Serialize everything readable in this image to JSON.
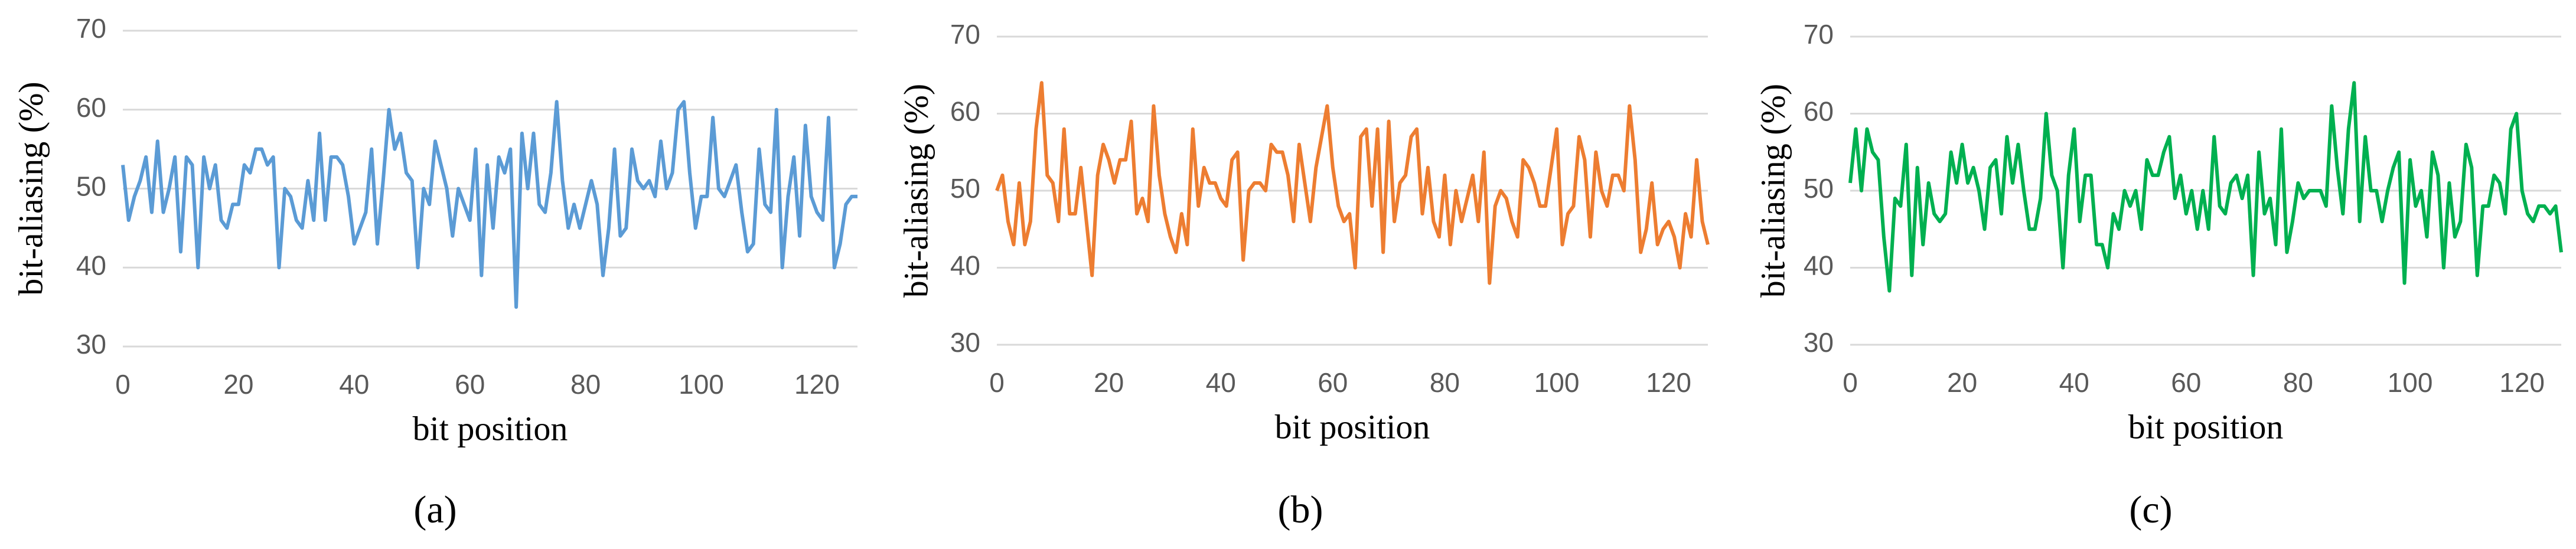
{
  "chart_data": [
    {
      "type": "line",
      "x_label": "bit position",
      "y_label": "bit-aliasing (%)",
      "caption": "(a)",
      "x": [
        0,
        1,
        2,
        3,
        4,
        5,
        6,
        7,
        8,
        9,
        10,
        11,
        12,
        13,
        14,
        15,
        16,
        17,
        18,
        19,
        20,
        21,
        22,
        23,
        24,
        25,
        26,
        27,
        28,
        29,
        30,
        31,
        32,
        33,
        34,
        35,
        36,
        37,
        38,
        39,
        40,
        41,
        42,
        43,
        44,
        45,
        46,
        47,
        48,
        49,
        50,
        51,
        52,
        53,
        54,
        55,
        56,
        57,
        58,
        59,
        60,
        61,
        62,
        63,
        64,
        65,
        66,
        67,
        68,
        69,
        70,
        71,
        72,
        73,
        74,
        75,
        76,
        77,
        78,
        79,
        80,
        81,
        82,
        83,
        84,
        85,
        86,
        87,
        88,
        89,
        90,
        91,
        92,
        93,
        94,
        95,
        96,
        97,
        98,
        99,
        100,
        101,
        102,
        103,
        104,
        105,
        106,
        107,
        108,
        109,
        110,
        111,
        112,
        113,
        114,
        115,
        116,
        117,
        118,
        119,
        120,
        121,
        122,
        123,
        124,
        125,
        126,
        127
      ],
      "series": [
        {
          "color": "#5b9bd5",
          "values": [
            53,
            46,
            49,
            51,
            54,
            47,
            56,
            47,
            50,
            54,
            42,
            54,
            53,
            40,
            54,
            50,
            53,
            46,
            45,
            48,
            48,
            53,
            52,
            55,
            55,
            53,
            54,
            40,
            50,
            49,
            46,
            45,
            51,
            46,
            57,
            46,
            54,
            54,
            53,
            49,
            43,
            45,
            47,
            55,
            43,
            51,
            60,
            55,
            57,
            52,
            51,
            40,
            50,
            48,
            56,
            53,
            50,
            44,
            50,
            48,
            46,
            55,
            39,
            53,
            45,
            54,
            52,
            55,
            35,
            57,
            50,
            57,
            48,
            47,
            52,
            61,
            51,
            45,
            48,
            45,
            48,
            51,
            48,
            39,
            45,
            55,
            44,
            45,
            55,
            51,
            50,
            51,
            49,
            56,
            50,
            52,
            60,
            61,
            52,
            45,
            49,
            49,
            59,
            50,
            49,
            51,
            53,
            47,
            42,
            43,
            55,
            48,
            47,
            60,
            40,
            49,
            54,
            44,
            58,
            49,
            47,
            46,
            59,
            40,
            43,
            48,
            49,
            49
          ]
        }
      ],
      "xlim": [
        0,
        127
      ],
      "ylim": [
        30,
        70
      ],
      "xticks": [
        0,
        20,
        40,
        60,
        80,
        100,
        120
      ],
      "yticks": [
        30,
        40,
        50,
        60,
        70
      ],
      "grid": true
    },
    {
      "type": "line",
      "x_label": "bit position",
      "y_label": "bit-aliasing (%)",
      "caption": "(b)",
      "x": [
        0,
        1,
        2,
        3,
        4,
        5,
        6,
        7,
        8,
        9,
        10,
        11,
        12,
        13,
        14,
        15,
        16,
        17,
        18,
        19,
        20,
        21,
        22,
        23,
        24,
        25,
        26,
        27,
        28,
        29,
        30,
        31,
        32,
        33,
        34,
        35,
        36,
        37,
        38,
        39,
        40,
        41,
        42,
        43,
        44,
        45,
        46,
        47,
        48,
        49,
        50,
        51,
        52,
        53,
        54,
        55,
        56,
        57,
        58,
        59,
        60,
        61,
        62,
        63,
        64,
        65,
        66,
        67,
        68,
        69,
        70,
        71,
        72,
        73,
        74,
        75,
        76,
        77,
        78,
        79,
        80,
        81,
        82,
        83,
        84,
        85,
        86,
        87,
        88,
        89,
        90,
        91,
        92,
        93,
        94,
        95,
        96,
        97,
        98,
        99,
        100,
        101,
        102,
        103,
        104,
        105,
        106,
        107,
        108,
        109,
        110,
        111,
        112,
        113,
        114,
        115,
        116,
        117,
        118,
        119,
        120,
        121,
        122,
        123,
        124,
        125,
        126,
        127
      ],
      "series": [
        {
          "color": "#ed7d31",
          "values": [
            50,
            52,
            46,
            43,
            51,
            43,
            46,
            58,
            64,
            52,
            51,
            46,
            58,
            47,
            47,
            53,
            46,
            39,
            52,
            56,
            54,
            51,
            54,
            54,
            59,
            47,
            49,
            46,
            61,
            52,
            47,
            44,
            42,
            47,
            43,
            58,
            48,
            53,
            51,
            51,
            49,
            48,
            54,
            55,
            41,
            50,
            51,
            51,
            50,
            56,
            55,
            55,
            52,
            46,
            56,
            51,
            46,
            53,
            57,
            61,
            53,
            48,
            46,
            47,
            40,
            57,
            58,
            48,
            58,
            42,
            59,
            46,
            51,
            52,
            57,
            58,
            47,
            53,
            46,
            44,
            52,
            43,
            50,
            46,
            49,
            52,
            46,
            55,
            38,
            48,
            50,
            49,
            46,
            44,
            54,
            53,
            51,
            48,
            48,
            53,
            58,
            43,
            47,
            48,
            57,
            54,
            44,
            55,
            50,
            48,
            52,
            52,
            50,
            61,
            54,
            42,
            45,
            51,
            43,
            45,
            46,
            44,
            40,
            47,
            44,
            54,
            46,
            43
          ]
        }
      ],
      "xlim": [
        0,
        127
      ],
      "ylim": [
        30,
        70
      ],
      "xticks": [
        0,
        20,
        40,
        60,
        80,
        100,
        120
      ],
      "yticks": [
        30,
        40,
        50,
        60,
        70
      ],
      "grid": true
    },
    {
      "type": "line",
      "x_label": "bit position",
      "y_label": "bit-aliasing (%)",
      "caption": "(c)",
      "x": [
        0,
        1,
        2,
        3,
        4,
        5,
        6,
        7,
        8,
        9,
        10,
        11,
        12,
        13,
        14,
        15,
        16,
        17,
        18,
        19,
        20,
        21,
        22,
        23,
        24,
        25,
        26,
        27,
        28,
        29,
        30,
        31,
        32,
        33,
        34,
        35,
        36,
        37,
        38,
        39,
        40,
        41,
        42,
        43,
        44,
        45,
        46,
        47,
        48,
        49,
        50,
        51,
        52,
        53,
        54,
        55,
        56,
        57,
        58,
        59,
        60,
        61,
        62,
        63,
        64,
        65,
        66,
        67,
        68,
        69,
        70,
        71,
        72,
        73,
        74,
        75,
        76,
        77,
        78,
        79,
        80,
        81,
        82,
        83,
        84,
        85,
        86,
        87,
        88,
        89,
        90,
        91,
        92,
        93,
        94,
        95,
        96,
        97,
        98,
        99,
        100,
        101,
        102,
        103,
        104,
        105,
        106,
        107,
        108,
        109,
        110,
        111,
        112,
        113,
        114,
        115,
        116,
        117,
        118,
        119,
        120,
        121,
        122,
        123,
        124,
        125,
        126,
        127
      ],
      "series": [
        {
          "color": "#00b050",
          "values": [
            51,
            58,
            50,
            58,
            55,
            54,
            44,
            37,
            49,
            48,
            56,
            39,
            53,
            43,
            51,
            47,
            46,
            47,
            55,
            51,
            56,
            51,
            53,
            50,
            45,
            53,
            54,
            47,
            57,
            51,
            56,
            50,
            45,
            45,
            49,
            60,
            52,
            50,
            40,
            52,
            58,
            46,
            52,
            52,
            43,
            43,
            40,
            47,
            45,
            50,
            48,
            50,
            45,
            54,
            52,
            52,
            55,
            57,
            49,
            52,
            47,
            50,
            45,
            50,
            45,
            57,
            48,
            47,
            51,
            52,
            49,
            52,
            39,
            55,
            47,
            49,
            43,
            58,
            42,
            46,
            51,
            49,
            50,
            50,
            50,
            48,
            61,
            53,
            47,
            58,
            64,
            46,
            57,
            50,
            50,
            46,
            50,
            53,
            55,
            38,
            54,
            48,
            50,
            44,
            55,
            52,
            40,
            51,
            44,
            46,
            56,
            53,
            39,
            48,
            48,
            52,
            51,
            47,
            58,
            60,
            50,
            47,
            46,
            48,
            48,
            47,
            48,
            42
          ]
        }
      ],
      "xlim": [
        0,
        127
      ],
      "ylim": [
        30,
        70
      ],
      "xticks": [
        0,
        20,
        40,
        60,
        80,
        100,
        120
      ],
      "yticks": [
        30,
        40,
        50,
        60,
        70
      ],
      "grid": true
    }
  ]
}
